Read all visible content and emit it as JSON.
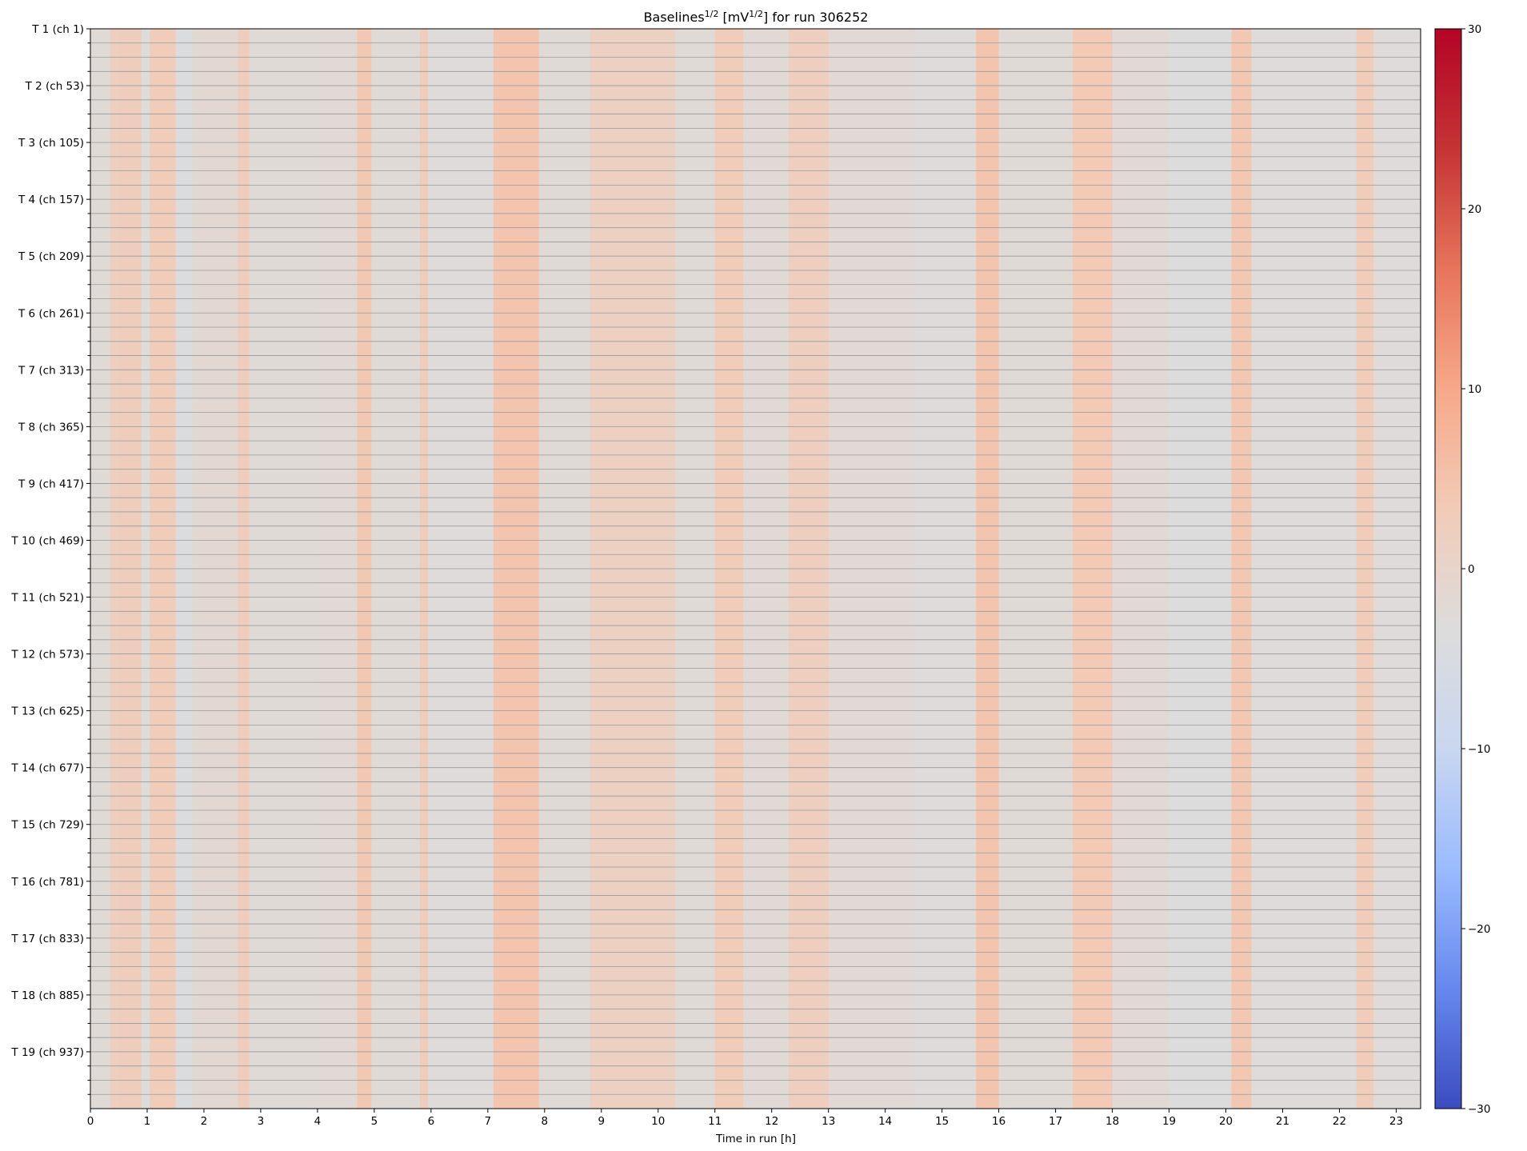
{
  "chart_data": {
    "type": "heatmap",
    "title_parts": {
      "prefix": "Baselines",
      "sup1": "1/2",
      "middle": " [mV",
      "sup2": "1/2",
      "suffix": "] for run 306252"
    },
    "title": "Baselines^1/2 [mV^1/2] for run 306252",
    "xlabel": "Time in run [h]",
    "ylabel": "",
    "xlim": [
      0,
      23.43
    ],
    "x_ticks": [
      "0",
      "1",
      "2",
      "3",
      "4",
      "5",
      "6",
      "7",
      "8",
      "9",
      "10",
      "11",
      "12",
      "13",
      "14",
      "15",
      "16",
      "17",
      "18",
      "19",
      "20",
      "21",
      "22",
      "23"
    ],
    "y_ticks": [
      "T 1 (ch 1)",
      "T 2 (ch 53)",
      "T 3 (ch 105)",
      "T 4 (ch 157)",
      "T 5 (ch 209)",
      "T 6 (ch 261)",
      "T 7 (ch 313)",
      "T 8 (ch 365)",
      "T 9 (ch 417)",
      "T 10 (ch 469)",
      "T 11 (ch 521)",
      "T 12 (ch 573)",
      "T 13 (ch 625)",
      "T 14 (ch 677)",
      "T 15 (ch 729)",
      "T 16 (ch 781)",
      "T 17 (ch 833)",
      "T 18 (ch 885)",
      "T 19 (ch 937)"
    ],
    "n_rows": 76,
    "rows_per_label": 4,
    "grid": true,
    "colormap": "coolwarm",
    "colorbar": {
      "min": -30,
      "max": 30,
      "ticks": [
        "30",
        "20",
        "10",
        "0",
        "−10",
        "−20",
        "−30"
      ],
      "tick_values": [
        30,
        20,
        10,
        0,
        -10,
        -20,
        -30
      ],
      "colors": [
        "#3b4cc0",
        "#6688ee",
        "#9abbff",
        "#c9d7f0",
        "#dddcdc",
        "#f2cbb7",
        "#f7a889",
        "#e7745b",
        "#c53334",
        "#b40426"
      ]
    },
    "time_bands": [
      {
        "x": [
          0.0,
          0.35
        ],
        "value": -2.5
      },
      {
        "x": [
          0.35,
          0.5
        ],
        "value": 2.0
      },
      {
        "x": [
          0.5,
          0.9
        ],
        "value": 2.5
      },
      {
        "x": [
          0.9,
          1.05
        ],
        "value": -3.5
      },
      {
        "x": [
          1.05,
          1.5
        ],
        "value": 3.0
      },
      {
        "x": [
          1.5,
          1.8
        ],
        "value": -4.0
      },
      {
        "x": [
          1.8,
          2.6
        ],
        "value": -1.5
      },
      {
        "x": [
          2.6,
          2.8
        ],
        "value": 2.5
      },
      {
        "x": [
          2.8,
          4.0
        ],
        "value": -2.5
      },
      {
        "x": [
          4.0,
          4.7
        ],
        "value": -2.0
      },
      {
        "x": [
          4.7,
          4.95
        ],
        "value": 4.0
      },
      {
        "x": [
          4.95,
          5.8
        ],
        "value": -2.5
      },
      {
        "x": [
          5.8,
          5.95
        ],
        "value": 2.5
      },
      {
        "x": [
          5.95,
          7.1
        ],
        "value": -3.0
      },
      {
        "x": [
          7.1,
          7.9
        ],
        "value": 4.5
      },
      {
        "x": [
          7.9,
          8.8
        ],
        "value": -2.5
      },
      {
        "x": [
          8.8,
          10.3
        ],
        "value": 1.5
      },
      {
        "x": [
          10.3,
          11.0
        ],
        "value": -2.5
      },
      {
        "x": [
          11.0,
          11.5
        ],
        "value": 3.0
      },
      {
        "x": [
          11.5,
          12.3
        ],
        "value": -2.0
      },
      {
        "x": [
          12.3,
          13.0
        ],
        "value": 2.0
      },
      {
        "x": [
          13.0,
          14.5
        ],
        "value": -2.0
      },
      {
        "x": [
          14.5,
          15.6
        ],
        "value": -3.0
      },
      {
        "x": [
          15.6,
          16.0
        ],
        "value": 4.5
      },
      {
        "x": [
          16.0,
          17.3
        ],
        "value": -2.5
      },
      {
        "x": [
          17.3,
          18.0
        ],
        "value": 3.5
      },
      {
        "x": [
          18.0,
          19.0
        ],
        "value": -2.0
      },
      {
        "x": [
          19.0,
          20.1
        ],
        "value": -3.5
      },
      {
        "x": [
          20.1,
          20.45
        ],
        "value": 4.0
      },
      {
        "x": [
          20.45,
          22.3
        ],
        "value": -3.0
      },
      {
        "x": [
          22.3,
          22.6
        ],
        "value": 3.0
      },
      {
        "x": [
          22.6,
          23.43
        ],
        "value": -3.0
      }
    ]
  }
}
